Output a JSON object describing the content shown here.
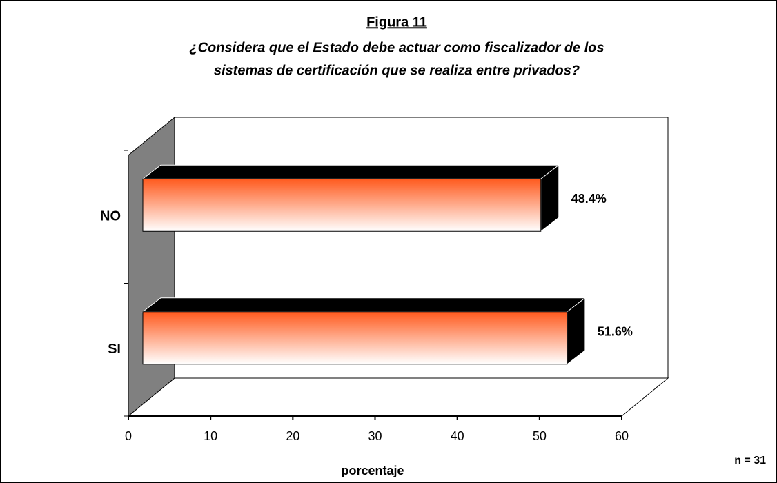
{
  "chart_data": {
    "type": "bar3d_horizontal",
    "title": "Figura 11",
    "subtitle": [
      "¿Considera que el Estado debe actuar como fiscalizador de los",
      "sistemas de certificación que se realiza entre privados?"
    ],
    "categories": [
      "NO",
      "SI"
    ],
    "values": [
      48.4,
      51.6
    ],
    "value_labels": [
      "48.4%",
      "51.6%"
    ],
    "xlim": [
      0,
      60
    ],
    "xticks": [
      0,
      10,
      20,
      30,
      40,
      50,
      60
    ],
    "xlabel": "porcentaje",
    "annotation": "n = 31",
    "color": "#ff5a1e",
    "grid": false
  }
}
